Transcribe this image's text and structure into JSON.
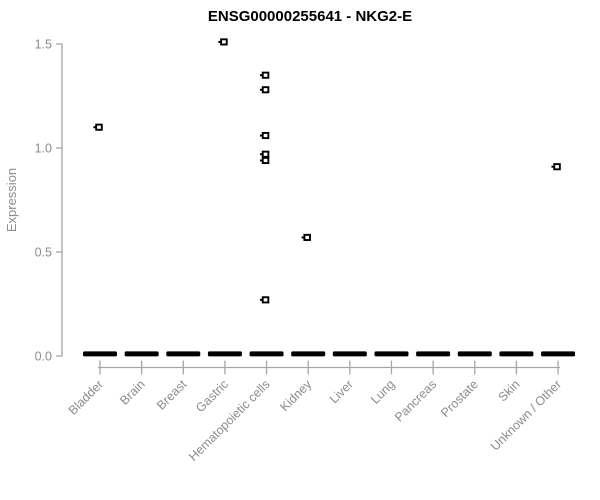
{
  "chart_data": {
    "type": "scatter",
    "title": "ENSG00000255641 - NKG2-E",
    "xlabel": "",
    "ylabel": "Expression",
    "ylim": [
      0,
      1.58
    ],
    "grid": false,
    "legend": "none",
    "xticklabel_rotation": 45,
    "yticks": [
      {
        "value": 0.0,
        "label": "0.0"
      },
      {
        "value": 0.5,
        "label": "0.5"
      },
      {
        "value": 1.0,
        "label": "1.0"
      },
      {
        "value": 1.5,
        "label": "1.5"
      }
    ],
    "categories": [
      "Bladder",
      "Brain",
      "Breast",
      "Gastric",
      "Hematopoietic cells",
      "Kidney",
      "Liver",
      "Lung",
      "Pancreas",
      "Prostate",
      "Skin",
      "Unknown / Other"
    ],
    "points": [
      {
        "category": "Bladder",
        "value": 1.1
      },
      {
        "category": "Gastric",
        "value": 1.51
      },
      {
        "category": "Hematopoietic cells",
        "value": 1.35
      },
      {
        "category": "Hematopoietic cells",
        "value": 1.28
      },
      {
        "category": "Hematopoietic cells",
        "value": 1.06
      },
      {
        "category": "Hematopoietic cells",
        "value": 0.97
      },
      {
        "category": "Hematopoietic cells",
        "value": 0.94
      },
      {
        "category": "Hematopoietic cells",
        "value": 0.27
      },
      {
        "category": "Kidney",
        "value": 0.57
      },
      {
        "category": "Unknown / Other",
        "value": 0.91
      }
    ],
    "zero_bar": {
      "value": 0.01,
      "note": "thick black dash of overlapping points at ~0 expression shown for every category"
    },
    "colors": {
      "point": "#000000",
      "zero_bar": "#000000",
      "axis": "#a6a6a6",
      "tick_label": "#8c8c8c",
      "title": "#000000",
      "background": "#ffffff"
    }
  }
}
